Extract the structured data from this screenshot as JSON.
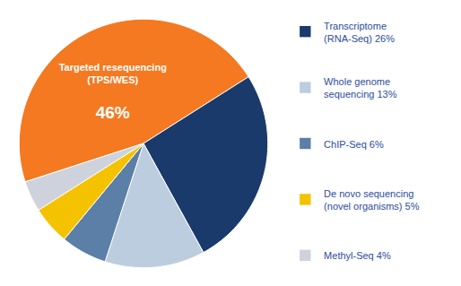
{
  "chart_data": {
    "type": "pie",
    "categories": [
      "Targeted resequencing\n(TPS/WES)",
      "Transcriptome\n(RNA-Seq) 26%",
      "Whole genome\nsequencing 13%",
      "ChIP-Seq 6%",
      "De novo sequencing\n(novel organisms) 5%",
      "Methyl-Seq 4%"
    ],
    "values": [
      46,
      26,
      13,
      6,
      5,
      4
    ],
    "value_labels": [
      "46%",
      null,
      null,
      null,
      null,
      null
    ],
    "colors": [
      "#F47920",
      "#1A3A6B",
      "#BCCDE0",
      "#5B7FA6",
      "#F5C200",
      "#CDD2DC"
    ],
    "legend": "right"
  }
}
